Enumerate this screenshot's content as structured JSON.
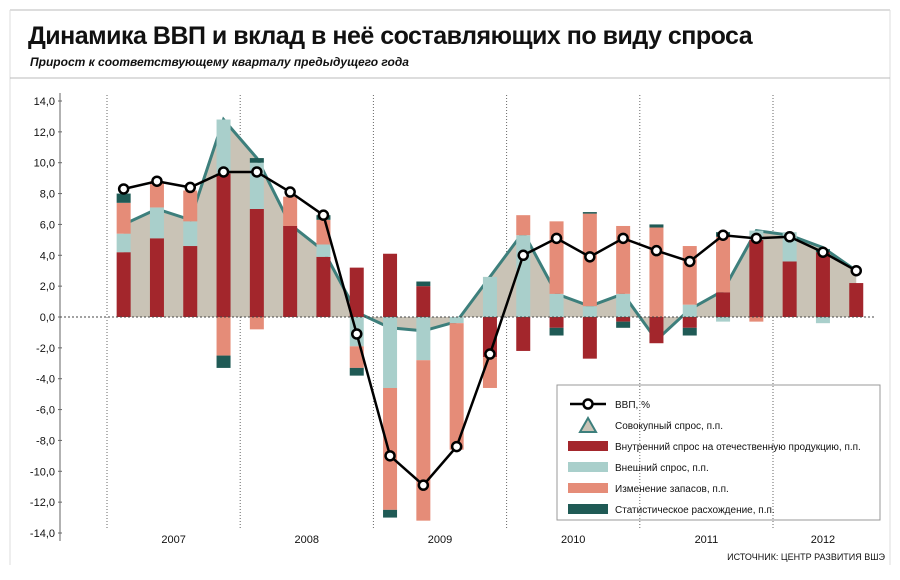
{
  "chart_data": {
    "type": "combo",
    "title": "Динамика ВВП и вклад в неё составляющих по виду спроса",
    "subtitle": "Прирост к соответствующему кварталу предыдущего года",
    "source": "ИСТОЧНИК: ЦЕНТР РАЗВИТИЯ ВШЭ",
    "categories": [
      null,
      null,
      null,
      null,
      null,
      null,
      null,
      null,
      null,
      null,
      null,
      null,
      null,
      null,
      null,
      null,
      null,
      null,
      null,
      null,
      null,
      null,
      null
    ],
    "years": [
      "2007",
      "2008",
      "2009",
      "2010",
      "2011",
      "2012"
    ],
    "ylim": [
      -14,
      14
    ],
    "yticks": [
      {
        "value": -14,
        "label": "-14,0"
      },
      {
        "value": -12,
        "label": "-12,0"
      },
      {
        "value": -10,
        "label": "-10,0"
      },
      {
        "value": -8,
        "label": "-8,0"
      },
      {
        "value": -6,
        "label": "-6,0"
      },
      {
        "value": -4,
        "label": "-4,0"
      },
      {
        "value": -2,
        "label": "-2,0"
      },
      {
        "value": 0,
        "label": "0,0"
      },
      {
        "value": 2,
        "label": "2,0"
      },
      {
        "value": 4,
        "label": "4,0"
      },
      {
        "value": 6,
        "label": "6,0"
      },
      {
        "value": 8,
        "label": "8,0"
      },
      {
        "value": 10,
        "label": "10,0"
      },
      {
        "value": 12,
        "label": "12,0"
      },
      {
        "value": 14,
        "label": "14,0"
      }
    ],
    "series": [
      {
        "name": "ВВП, %",
        "type": "line",
        "color": "#000000",
        "values": [
          8.3,
          8.8,
          8.4,
          9.4,
          9.4,
          8.1,
          6.6,
          -1.1,
          -9.0,
          -10.9,
          -8.4,
          -2.4,
          4.0,
          5.1,
          3.9,
          5.1,
          4.3,
          3.6,
          5.3,
          5.1,
          5.2,
          4.2,
          3.0
        ]
      },
      {
        "name": "Совокупный спрос, п.п.",
        "type": "area",
        "color": "#c9c3b6",
        "line_color": "#3d7f7c",
        "values": [
          6.0,
          7.0,
          6.3,
          12.8,
          10.3,
          6.0,
          4.3,
          0.3,
          -0.7,
          -0.9,
          -0.3,
          2.6,
          5.5,
          1.5,
          0.7,
          1.5,
          -1.5,
          0.5,
          1.7,
          5.6,
          5.3,
          4.5,
          3.0
        ]
      },
      {
        "name": "Внутренний спрос на отечественную продукцию, п.п.",
        "type": "bar",
        "color": "#a3262c",
        "values": [
          4.2,
          5.1,
          4.6,
          9.3,
          7.0,
          5.9,
          3.9,
          3.2,
          4.1,
          2.0,
          null,
          -2.6,
          -2.2,
          -0.7,
          -2.7,
          -0.3,
          -1.7,
          -0.7,
          1.6,
          5.0,
          3.6,
          4.2,
          2.2
        ]
      },
      {
        "name": "Внешний спрос, п.п.",
        "type": "bar",
        "color": "#a9cfcb",
        "values": [
          1.2,
          2.0,
          1.6,
          3.5,
          3.0,
          null,
          0.8,
          -1.9,
          -4.6,
          -2.8,
          -0.4,
          2.6,
          5.3,
          1.5,
          0.7,
          1.5,
          null,
          0.8,
          -0.3,
          0.6,
          1.9,
          -0.4,
          null
        ]
      },
      {
        "name": "Изменение запасов, п.п.",
        "type": "bar",
        "color": "#e58c78",
        "values": [
          2.0,
          1.7,
          2.0,
          -2.5,
          -0.8,
          1.9,
          1.6,
          -1.4,
          -7.9,
          -10.4,
          -8.2,
          -2.0,
          1.3,
          4.7,
          6.0,
          4.4,
          5.8,
          3.8,
          3.6,
          -0.3,
          null,
          null,
          null
        ]
      },
      {
        "name": "Статистическое расхождение, п.п.",
        "type": "bar",
        "color": "#1f5a55",
        "values": [
          0.6,
          null,
          null,
          -0.8,
          0.3,
          null,
          0.3,
          -0.5,
          -0.5,
          0.3,
          null,
          null,
          null,
          -0.5,
          0.1,
          -0.4,
          0.2,
          -0.5,
          0.3,
          null,
          null,
          0.2,
          null
        ]
      }
    ]
  }
}
